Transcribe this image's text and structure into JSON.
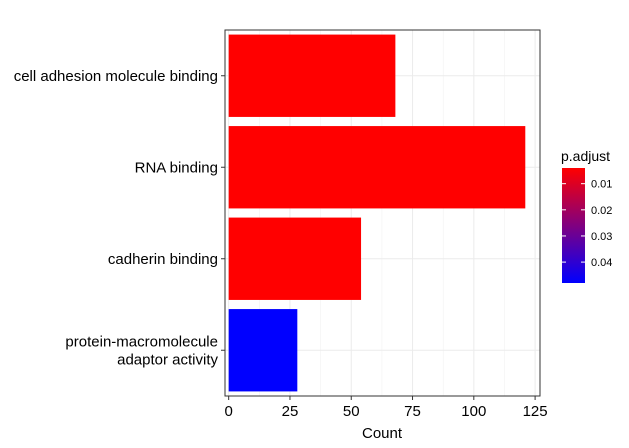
{
  "chart_data": {
    "type": "bar",
    "orientation": "horizontal",
    "categories": [
      [
        "cell adhesion molecule binding"
      ],
      [
        "RNA binding"
      ],
      [
        "cadherin binding"
      ],
      [
        "protein-macromolecule",
        "adaptor activity"
      ]
    ],
    "values": [
      68,
      121,
      54,
      28
    ],
    "p_adjust": [
      0.004,
      0.004,
      0.004,
      0.048
    ],
    "xlabel": "Count",
    "ylabel": "",
    "xlim": [
      -1.5,
      127
    ],
    "xticks": [
      0,
      25,
      50,
      75,
      100,
      125
    ],
    "grid": true,
    "legend": {
      "title": "p.adjust",
      "placement": "right",
      "ticks": [
        "0.01",
        "0.02",
        "0.03",
        "0.04"
      ],
      "tick_values": [
        0.01,
        0.02,
        0.03,
        0.04
      ],
      "range": [
        0.004,
        0.048
      ],
      "low_color": "#FF0000",
      "high_color": "#0000FF"
    }
  }
}
